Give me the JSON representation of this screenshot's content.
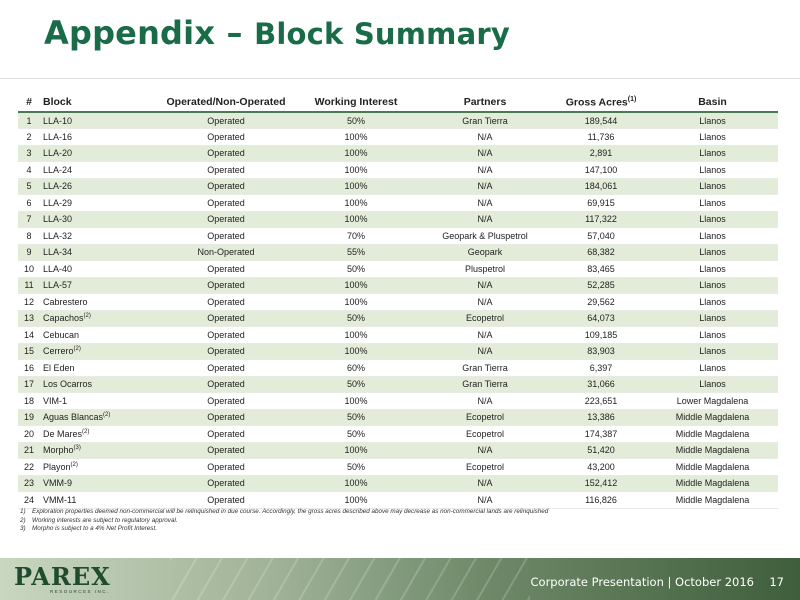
{
  "title": {
    "main": "Appendix",
    "dash": " – ",
    "sub": "Block Summary"
  },
  "table": {
    "headers": {
      "num": "#",
      "block": "Block",
      "operated": "Operated/Non-Operated",
      "working_interest": "Working Interest",
      "partners": "Partners",
      "gross_acres": "Gross Acres",
      "gross_acres_note": "(1)",
      "basin": "Basin"
    },
    "rows": [
      {
        "num": "1",
        "block": "LLA-10",
        "note": "",
        "operated": "Operated",
        "wi": "50%",
        "partners": "Gran Tierra",
        "acres": "189,544",
        "basin": "Llanos"
      },
      {
        "num": "2",
        "block": "LLA-16",
        "note": "",
        "operated": "Operated",
        "wi": "100%",
        "partners": "N/A",
        "acres": "11,736",
        "basin": "Llanos"
      },
      {
        "num": "3",
        "block": "LLA-20",
        "note": "",
        "operated": "Operated",
        "wi": "100%",
        "partners": "N/A",
        "acres": "2,891",
        "basin": "Llanos"
      },
      {
        "num": "4",
        "block": "LLA-24",
        "note": "",
        "operated": "Operated",
        "wi": "100%",
        "partners": "N/A",
        "acres": "147,100",
        "basin": "Llanos"
      },
      {
        "num": "5",
        "block": "LLA-26",
        "note": "",
        "operated": "Operated",
        "wi": "100%",
        "partners": "N/A",
        "acres": "184,061",
        "basin": "Llanos"
      },
      {
        "num": "6",
        "block": "LLA-29",
        "note": "",
        "operated": "Operated",
        "wi": "100%",
        "partners": "N/A",
        "acres": "69,915",
        "basin": "Llanos"
      },
      {
        "num": "7",
        "block": "LLA-30",
        "note": "",
        "operated": "Operated",
        "wi": "100%",
        "partners": "N/A",
        "acres": "117,322",
        "basin": "Llanos"
      },
      {
        "num": "8",
        "block": "LLA-32",
        "note": "",
        "operated": "Operated",
        "wi": "70%",
        "partners": "Geopark & Pluspetrol",
        "acres": "57,040",
        "basin": "Llanos"
      },
      {
        "num": "9",
        "block": "LLA-34",
        "note": "",
        "operated": "Non-Operated",
        "wi": "55%",
        "partners": "Geopark",
        "acres": "68,382",
        "basin": "Llanos"
      },
      {
        "num": "10",
        "block": "LLA-40",
        "note": "",
        "operated": "Operated",
        "wi": "50%",
        "partners": "Pluspetrol",
        "acres": "83,465",
        "basin": "Llanos"
      },
      {
        "num": "11",
        "block": "LLA-57",
        "note": "",
        "operated": "Operated",
        "wi": "100%",
        "partners": "N/A",
        "acres": "52,285",
        "basin": "Llanos"
      },
      {
        "num": "12",
        "block": "Cabrestero",
        "note": "",
        "operated": "Operated",
        "wi": "100%",
        "partners": "N/A",
        "acres": "29,562",
        "basin": "Llanos"
      },
      {
        "num": "13",
        "block": "Capachos",
        "note": "(2)",
        "operated": "Operated",
        "wi": "50%",
        "partners": "Ecopetrol",
        "acres": "64,073",
        "basin": "Llanos"
      },
      {
        "num": "14",
        "block": "Cebucan",
        "note": "",
        "operated": "Operated",
        "wi": "100%",
        "partners": "N/A",
        "acres": "109,185",
        "basin": "Llanos"
      },
      {
        "num": "15",
        "block": "Cerrero",
        "note": "(2)",
        "operated": "Operated",
        "wi": "100%",
        "partners": "N/A",
        "acres": "83,903",
        "basin": "Llanos"
      },
      {
        "num": "16",
        "block": "El Eden",
        "note": "",
        "operated": "Operated",
        "wi": "60%",
        "partners": "Gran Tierra",
        "acres": "6,397",
        "basin": "Llanos"
      },
      {
        "num": "17",
        "block": "Los Ocarros",
        "note": "",
        "operated": "Operated",
        "wi": "50%",
        "partners": "Gran Tierra",
        "acres": "31,066",
        "basin": "Llanos"
      },
      {
        "num": "18",
        "block": "VIM-1",
        "note": "",
        "operated": "Operated",
        "wi": "100%",
        "partners": "N/A",
        "acres": "223,651",
        "basin": "Lower Magdalena"
      },
      {
        "num": "19",
        "block": "Aguas Blancas",
        "note": "(2)",
        "operated": "Operated",
        "wi": "50%",
        "partners": "Ecopetrol",
        "acres": "13,386",
        "basin": "Middle Magdalena"
      },
      {
        "num": "20",
        "block": "De Mares",
        "note": "(2)",
        "operated": "Operated",
        "wi": "50%",
        "partners": "Ecopetrol",
        "acres": "174,387",
        "basin": "Middle Magdalena"
      },
      {
        "num": "21",
        "block": "Morpho",
        "note": "(3)",
        "operated": "Operated",
        "wi": "100%",
        "partners": "N/A",
        "acres": "51,420",
        "basin": "Middle Magdalena"
      },
      {
        "num": "22",
        "block": "Playon",
        "note": "(2)",
        "operated": "Operated",
        "wi": "50%",
        "partners": "Ecopetrol",
        "acres": "43,200",
        "basin": "Middle Magdalena"
      },
      {
        "num": "23",
        "block": "VMM-9",
        "note": "",
        "operated": "Operated",
        "wi": "100%",
        "partners": "N/A",
        "acres": "152,412",
        "basin": "Middle Magdalena"
      },
      {
        "num": "24",
        "block": "VMM-11",
        "note": "",
        "operated": "Operated",
        "wi": "100%",
        "partners": "N/A",
        "acres": "116,826",
        "basin": "Middle Magdalena"
      }
    ]
  },
  "footnotes": [
    {
      "num": "1)",
      "text": "Exploration properties deemed non-commercial will be relinquished in due course. Accordingly, the gross acres described above may decrease as non-commercial lands are relinquished"
    },
    {
      "num": "2)",
      "text": "Working interests are subject to regulatory approval."
    },
    {
      "num": "3)",
      "text": "Morpho is subject to a 4% Net Profit Interest."
    }
  ],
  "footer": {
    "logo_text": "PAREX",
    "logo_sub": "RESOURCES INC.",
    "caption": "Corporate Presentation | October 2016",
    "page_number": "17"
  },
  "colors": {
    "title_green": "#1a6b47",
    "row_band": "#e3ecd9",
    "header_rule": "#4a7a55",
    "footer_dark": "#3f5e3c"
  }
}
